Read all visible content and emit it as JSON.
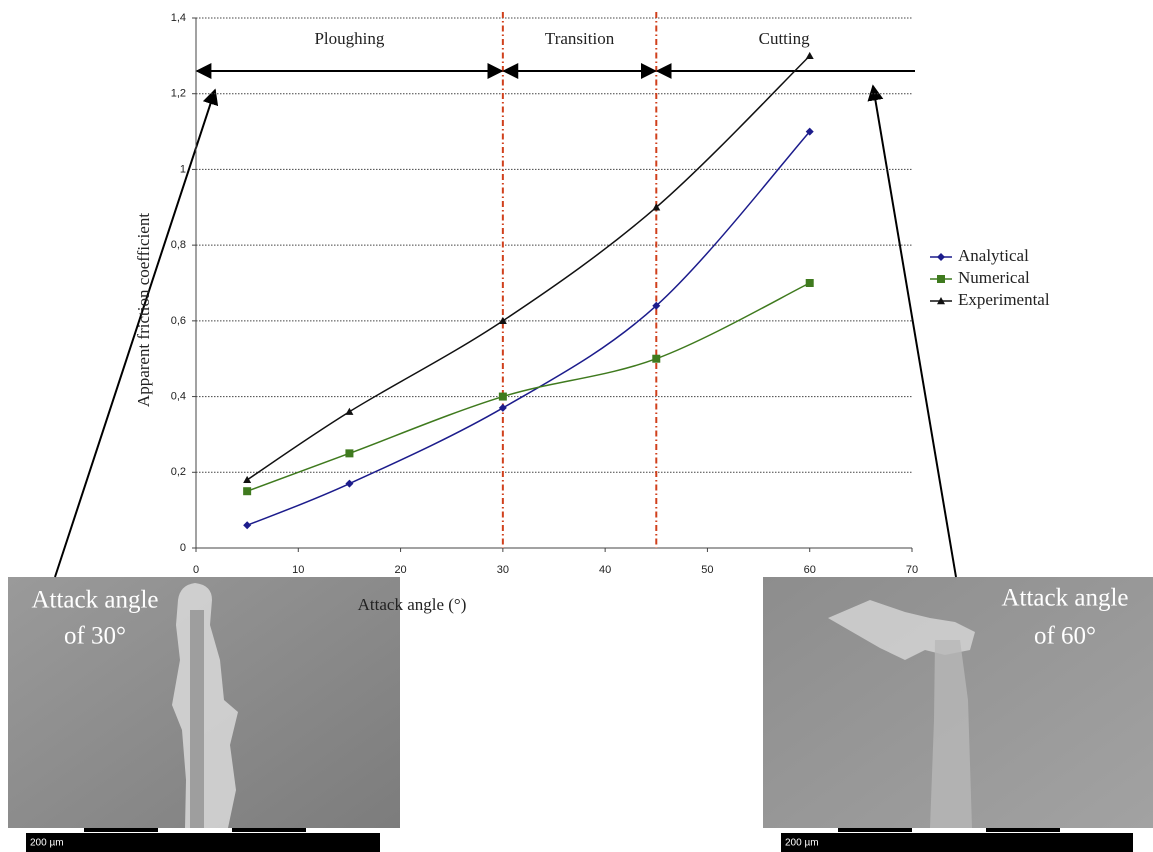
{
  "chart_data": {
    "type": "line",
    "xlabel": "Attack angle (°)",
    "ylabel": "Apparent friction coefficient",
    "x": [
      5,
      15,
      30,
      45,
      60
    ],
    "series": [
      {
        "name": "Analytical",
        "color": "#1c1c8c",
        "marker": "diamond",
        "values": [
          0.06,
          0.17,
          0.37,
          0.64,
          1.1
        ]
      },
      {
        "name": "Numerical",
        "color": "#3f7a1e",
        "marker": "square",
        "values": [
          0.15,
          0.25,
          0.4,
          0.5,
          0.7
        ]
      },
      {
        "name": "Experimental",
        "color": "#111111",
        "marker": "triangle",
        "values": [
          0.18,
          0.36,
          0.6,
          0.9,
          1.3
        ]
      }
    ],
    "xlim": [
      0,
      70
    ],
    "xticks": [
      0,
      10,
      20,
      30,
      40,
      50,
      60,
      70
    ],
    "ylim": [
      0,
      1.4
    ],
    "yticks": [
      {
        "value": 0,
        "label": "0"
      },
      {
        "value": 0.2,
        "label": "0,2"
      },
      {
        "value": 0.4,
        "label": "0,4"
      },
      {
        "value": 0.6,
        "label": "0,6"
      },
      {
        "value": 0.8,
        "label": "0,8"
      },
      {
        "value": 1,
        "label": "1"
      },
      {
        "value": 1.2,
        "label": "1,2"
      },
      {
        "value": 1.4,
        "label": "1,4"
      }
    ],
    "grid": true,
    "legend": "right",
    "vlines": [
      30,
      45
    ],
    "vline_color": "#d0401c",
    "regions": [
      {
        "label": "Ploughing",
        "start": 0,
        "end": 30
      },
      {
        "label": "Transition",
        "start": 30,
        "end": 45
      },
      {
        "label": "Cutting",
        "start": 45,
        "end": 70
      }
    ],
    "images": [
      {
        "caption": [
          "Attack angle",
          "of 30°"
        ],
        "scale_label": "200 µm"
      },
      {
        "caption": [
          "Attack angle",
          "of 60°"
        ],
        "scale_label": "200 µm"
      }
    ]
  }
}
